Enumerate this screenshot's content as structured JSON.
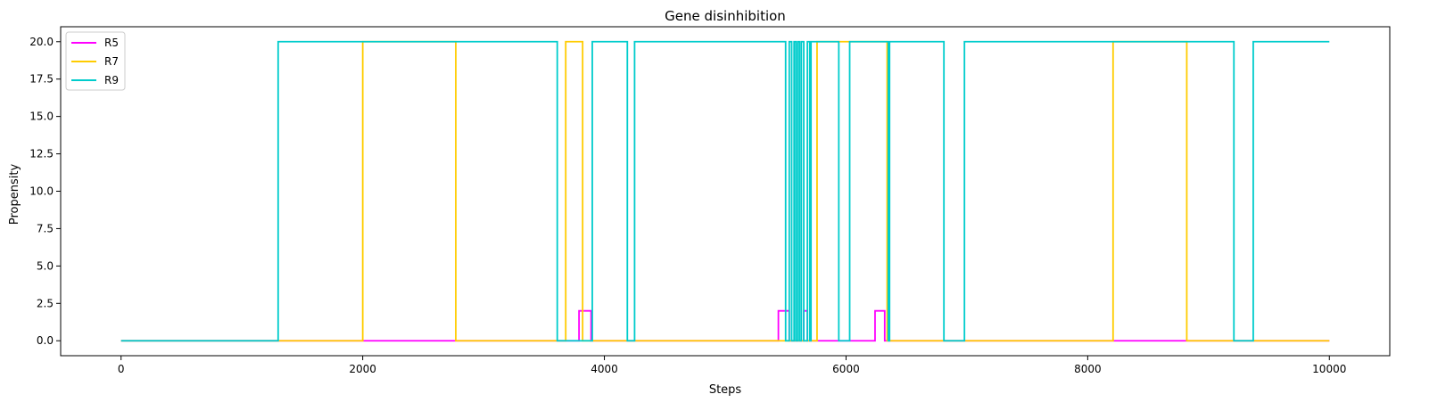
{
  "chart_data": {
    "type": "line",
    "title": "Gene disinhibition",
    "xlabel": "Steps",
    "ylabel": "Propensity",
    "xlim": [
      -500,
      10500
    ],
    "ylim": [
      -1.0,
      21.0
    ],
    "x_ticks": [
      0,
      2000,
      4000,
      6000,
      8000,
      10000
    ],
    "y_ticks": [
      0.0,
      2.5,
      5.0,
      7.5,
      10.0,
      12.5,
      15.0,
      17.5,
      20.0
    ],
    "x_tick_labels": [
      "0",
      "2000",
      "4000",
      "6000",
      "8000",
      "10000"
    ],
    "y_tick_labels": [
      "0.0",
      "2.5",
      "5.0",
      "7.5",
      "10.0",
      "12.5",
      "15.0",
      "17.5",
      "20.0"
    ],
    "grid": false,
    "legend": "upper left",
    "series": [
      {
        "name": "R5",
        "color": "#ff00ff",
        "points": [
          [
            0,
            0
          ],
          [
            3790,
            0
          ],
          [
            3790,
            2
          ],
          [
            3890,
            2
          ],
          [
            3890,
            0
          ],
          [
            5440,
            0
          ],
          [
            5440,
            2
          ],
          [
            5530,
            2
          ],
          [
            5530,
            0
          ],
          [
            5650,
            0
          ],
          [
            5650,
            2
          ],
          [
            5680,
            2
          ],
          [
            5680,
            0
          ],
          [
            6240,
            0
          ],
          [
            6240,
            2
          ],
          [
            6320,
            2
          ],
          [
            6320,
            0
          ],
          [
            10000,
            0
          ]
        ]
      },
      {
        "name": "R7",
        "color": "#ffcc00",
        "points": [
          [
            0,
            0
          ],
          [
            2000,
            0
          ],
          [
            2000,
            20
          ],
          [
            2770,
            20
          ],
          [
            2770,
            0
          ],
          [
            3680,
            0
          ],
          [
            3680,
            20
          ],
          [
            3820,
            20
          ],
          [
            3820,
            0
          ],
          [
            5760,
            0
          ],
          [
            5760,
            20
          ],
          [
            6340,
            20
          ],
          [
            6340,
            0
          ],
          [
            8210,
            0
          ],
          [
            8210,
            20
          ],
          [
            8820,
            20
          ],
          [
            8820,
            0
          ],
          [
            10000,
            0
          ]
        ]
      },
      {
        "name": "R9",
        "color": "#00cccc",
        "points": [
          [
            0,
            0
          ],
          [
            1300,
            0
          ],
          [
            1300,
            20
          ],
          [
            3610,
            20
          ],
          [
            3610,
            0
          ],
          [
            3900,
            0
          ],
          [
            3900,
            20
          ],
          [
            4190,
            20
          ],
          [
            4190,
            0
          ],
          [
            4250,
            0
          ],
          [
            4250,
            20
          ],
          [
            5500,
            20
          ],
          [
            5500,
            0
          ],
          [
            5530,
            0
          ],
          [
            5530,
            20
          ],
          [
            5550,
            20
          ],
          [
            5550,
            0
          ],
          [
            5570,
            0
          ],
          [
            5570,
            20
          ],
          [
            5585,
            20
          ],
          [
            5585,
            0
          ],
          [
            5600,
            0
          ],
          [
            5600,
            20
          ],
          [
            5615,
            20
          ],
          [
            5615,
            0
          ],
          [
            5630,
            0
          ],
          [
            5630,
            20
          ],
          [
            5650,
            20
          ],
          [
            5650,
            0
          ],
          [
            5680,
            0
          ],
          [
            5680,
            20
          ],
          [
            5700,
            20
          ],
          [
            5700,
            0
          ],
          [
            5710,
            0
          ],
          [
            5710,
            20
          ],
          [
            5940,
            20
          ],
          [
            5940,
            0
          ],
          [
            6030,
            0
          ],
          [
            6030,
            20
          ],
          [
            6350,
            20
          ],
          [
            6350,
            0
          ],
          [
            6360,
            0
          ],
          [
            6360,
            20
          ],
          [
            6810,
            20
          ],
          [
            6810,
            0
          ],
          [
            6980,
            0
          ],
          [
            6980,
            20
          ],
          [
            9210,
            20
          ],
          [
            9210,
            0
          ],
          [
            9370,
            0
          ],
          [
            9370,
            20
          ],
          [
            10000,
            20
          ]
        ]
      }
    ]
  }
}
